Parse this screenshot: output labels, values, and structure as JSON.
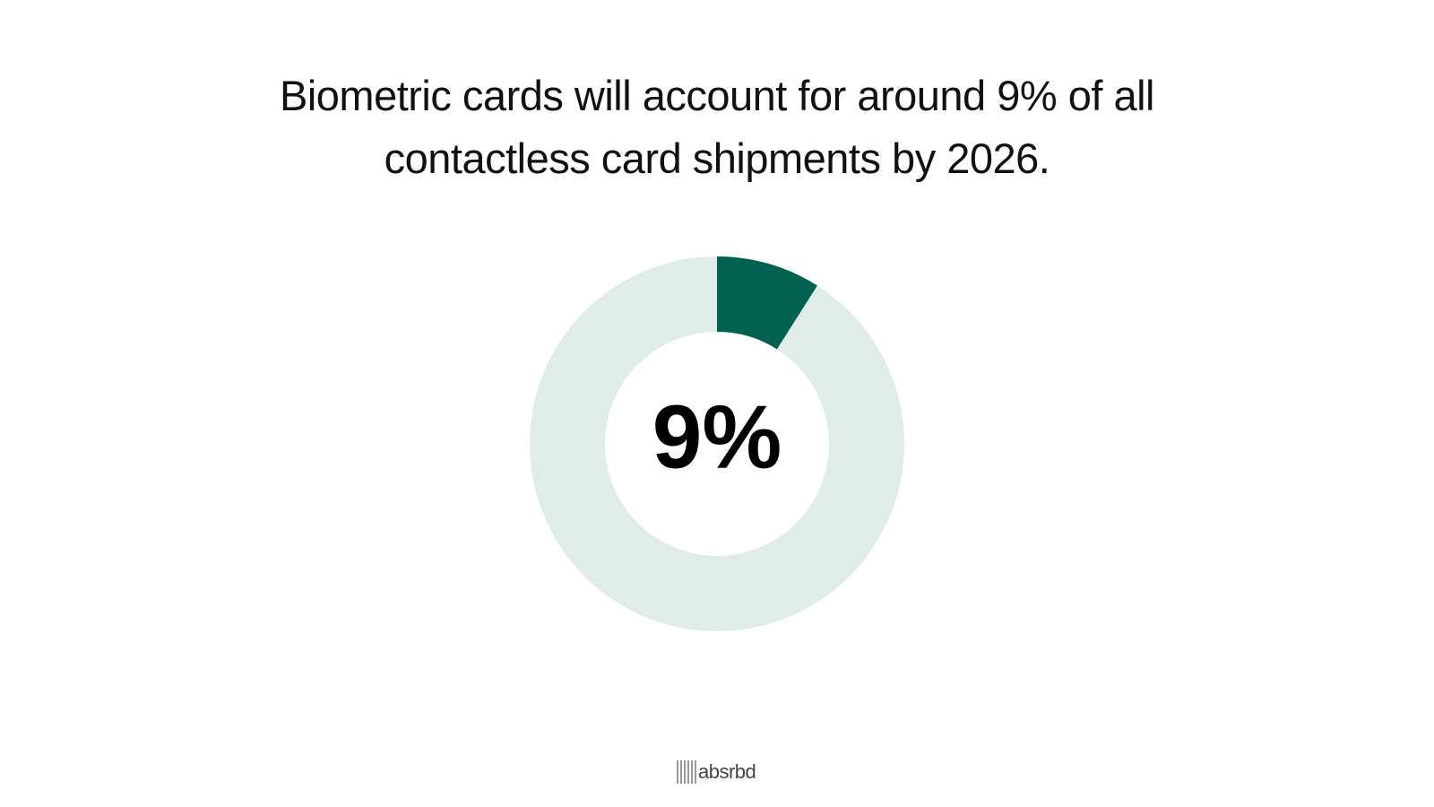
{
  "chart_data": {
    "type": "donut",
    "title": "Biometric cards will account for around 9% of all contactless card shipments by 2026.",
    "values": [
      9,
      91
    ],
    "value_labels": [
      "9%",
      null
    ],
    "colors": [
      "#006150",
      "#dfece8"
    ]
  },
  "footer": {
    "brand": "absrbd"
  }
}
